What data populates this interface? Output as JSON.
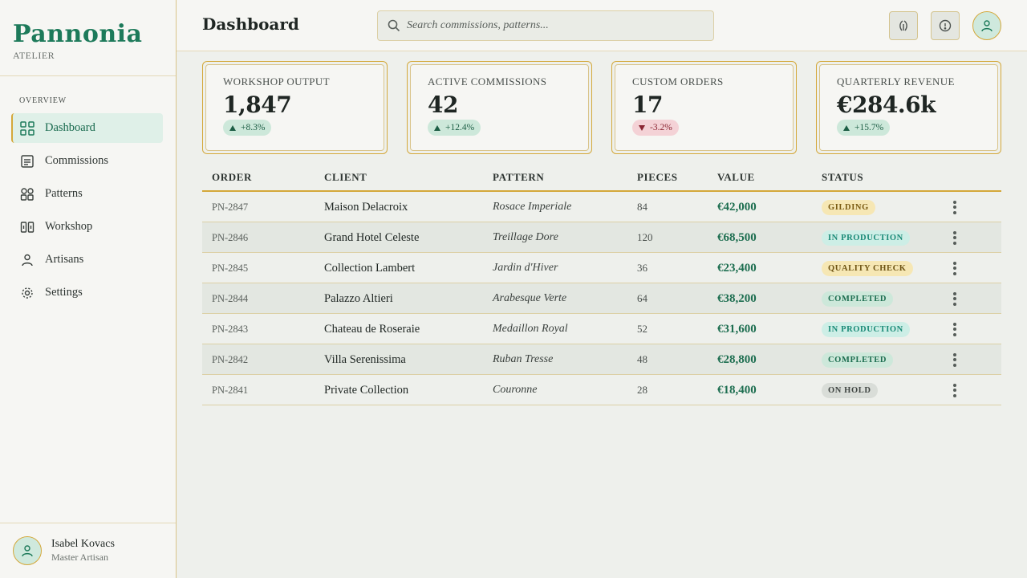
{
  "brand": {
    "name": "Pannonia",
    "sub": "ATELIER"
  },
  "sidebar": {
    "section": "OVERVIEW",
    "items": [
      {
        "label": "Dashboard",
        "icon": "grid-icon"
      },
      {
        "label": "Commissions",
        "icon": "document-icon"
      },
      {
        "label": "Patterns",
        "icon": "pattern-icon"
      },
      {
        "label": "Workshop",
        "icon": "workshop-icon"
      },
      {
        "label": "Artisans",
        "icon": "person-icon"
      },
      {
        "label": "Settings",
        "icon": "gear-icon"
      }
    ]
  },
  "user": {
    "name": "Isabel Kovacs",
    "role": "Master Artisan"
  },
  "header": {
    "title": "Dashboard",
    "search_placeholder": "Search commissions, patterns..."
  },
  "kpis": [
    {
      "label": "WORKSHOP OUTPUT",
      "value": "1,847",
      "delta": "+8.3%",
      "direction": "up"
    },
    {
      "label": "ACTIVE COMMISSIONS",
      "value": "42",
      "delta": "+12.4%",
      "direction": "up"
    },
    {
      "label": "CUSTOM ORDERS",
      "value": "17",
      "delta": "-3.2%",
      "direction": "down"
    },
    {
      "label": "QUARTERLY REVENUE",
      "value": "€284.6k",
      "delta": "+15.7%",
      "direction": "up"
    }
  ],
  "table": {
    "columns": [
      "ORDER",
      "CLIENT",
      "PATTERN",
      "PIECES",
      "VALUE",
      "STATUS"
    ],
    "rows": [
      {
        "order": "PN-2847",
        "client": "Maison Delacroix",
        "pattern": "Rosace Imperiale",
        "pieces": "84",
        "value": "€42,000",
        "status": "GILDING"
      },
      {
        "order": "PN-2846",
        "client": "Grand Hotel Celeste",
        "pattern": "Treillage Dore",
        "pieces": "120",
        "value": "€68,500",
        "status": "IN PRODUCTION"
      },
      {
        "order": "PN-2845",
        "client": "Collection Lambert",
        "pattern": "Jardin d'Hiver",
        "pieces": "36",
        "value": "€23,400",
        "status": "QUALITY CHECK"
      },
      {
        "order": "PN-2844",
        "client": "Palazzo Altieri",
        "pattern": "Arabesque Verte",
        "pieces": "64",
        "value": "€38,200",
        "status": "COMPLETED"
      },
      {
        "order": "PN-2843",
        "client": "Chateau de Roseraie",
        "pattern": "Medaillon Royal",
        "pieces": "52",
        "value": "€31,600",
        "status": "IN PRODUCTION"
      },
      {
        "order": "PN-2842",
        "client": "Villa Serenissima",
        "pattern": "Ruban Tresse",
        "pieces": "48",
        "value": "€28,800",
        "status": "COMPLETED"
      },
      {
        "order": "PN-2841",
        "client": "Private Collection",
        "pattern": "Couronne",
        "pieces": "28",
        "value": "€18,400",
        "status": "ON HOLD"
      }
    ]
  },
  "colors": {
    "brand": "#1d7a5a",
    "gold": "#d4a83a",
    "up": "#1d5e45",
    "down": "#8a2633"
  }
}
